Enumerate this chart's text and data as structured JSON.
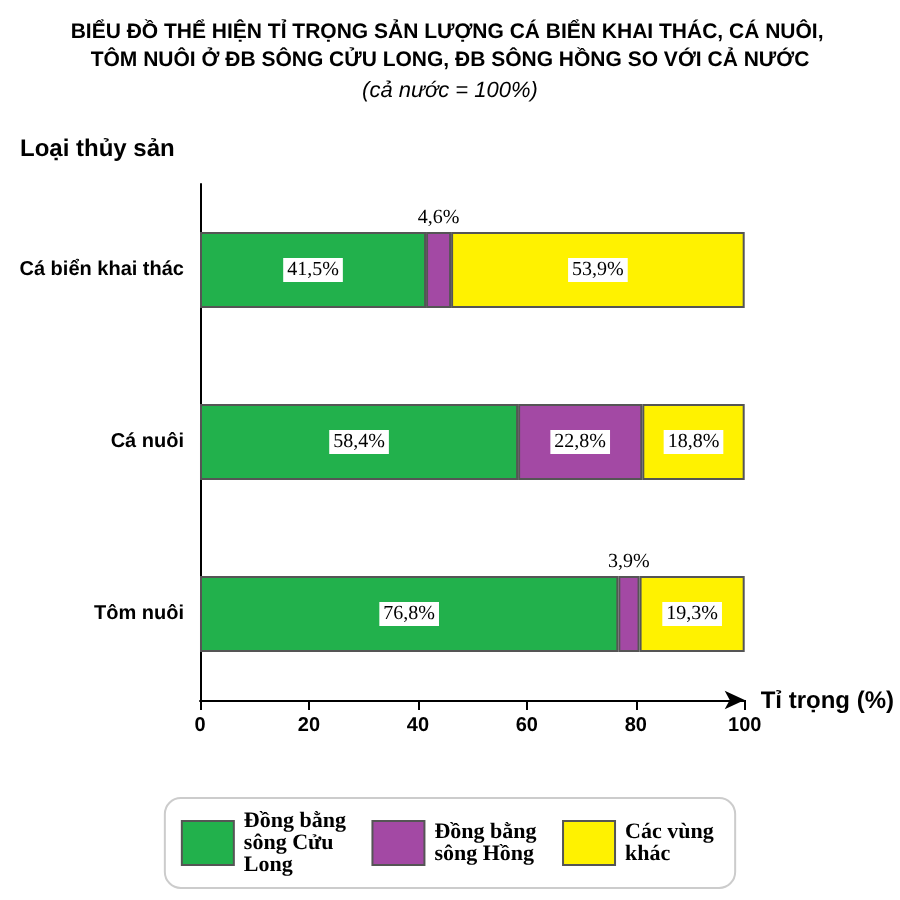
{
  "chart_data": {
    "type": "bar",
    "orientation": "horizontal",
    "stacked": true,
    "title": "BIỂU ĐỒ THỂ HIỆN TỈ TRỌNG SẢN LƯỢNG CÁ BIỂN KHAI THÁC, CÁ NUÔI, TÔM NUÔI Ở ĐB SÔNG CỬU LONG, ĐB SÔNG HỒNG SO VỚI CẢ NƯỚC",
    "subtitle": "(cả nước = 100%)",
    "xlabel": "Tỉ trọng (%)",
    "ylabel": "Loại thủy sản",
    "categories": [
      "Cá biển khai thác",
      "Cá nuôi",
      "Tôm nuôi"
    ],
    "series": [
      {
        "name": "Đồng bằng sông Cửu Long",
        "color": "#22b14c",
        "values": [
          41.5,
          58.4,
          76.8
        ],
        "value_labels": [
          "41,5%",
          "58,4%",
          "76,8%"
        ]
      },
      {
        "name": "Đồng bằng sông Hồng",
        "color": "#a349a4",
        "values": [
          4.6,
          22.8,
          3.9
        ],
        "value_labels": [
          "4,6%",
          "22,8%",
          "3,9%"
        ]
      },
      {
        "name": "Các vùng khác",
        "color": "#fff200",
        "values": [
          53.9,
          18.8,
          19.3
        ],
        "value_labels": [
          "53,9%",
          "18,8%",
          "19,3%"
        ]
      }
    ],
    "xlim": [
      0,
      100
    ],
    "xticks": [
      0,
      20,
      40,
      60,
      80,
      100
    ],
    "grid": false,
    "legend": "bottom"
  }
}
